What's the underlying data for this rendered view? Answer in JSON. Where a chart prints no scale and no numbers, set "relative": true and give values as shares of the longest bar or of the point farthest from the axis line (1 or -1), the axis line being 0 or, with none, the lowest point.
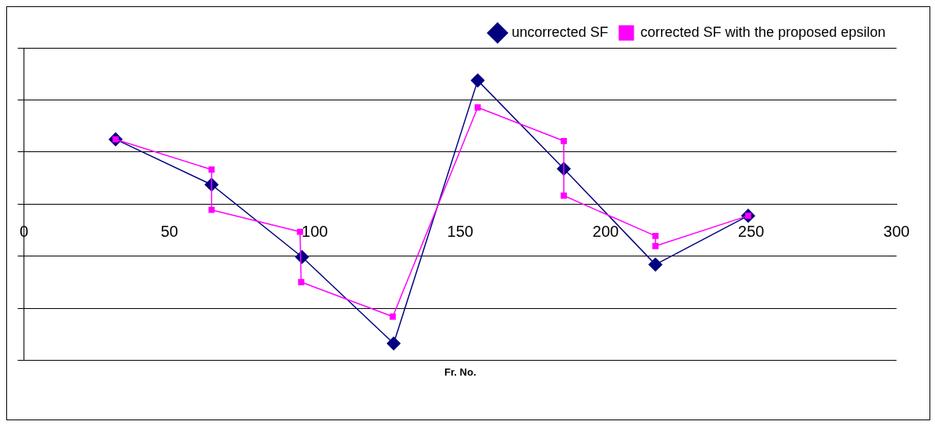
{
  "chart_data": {
    "type": "line",
    "xlabel": "Fr. No.",
    "relative": true,
    "xlim": [
      0,
      300
    ],
    "xticks": [
      0,
      50,
      100,
      150,
      200,
      250,
      300
    ],
    "grid": "y",
    "legend": "top right",
    "line_style": "solid",
    "series": [
      {
        "name": "uncorrected SF",
        "color": "#000080",
        "marker": "diamond",
        "x": [
          31.5,
          64.5,
          95.6,
          127.1,
          156,
          185.6,
          217.1,
          249
        ],
        "values": [
          0.464,
          0.139,
          -0.38,
          -1,
          0.886,
          0.253,
          -0.434,
          -0.084
        ]
      },
      {
        "name": "corrected SF with the proposed epsilon",
        "color": "#ff00ff",
        "marker": "square",
        "x": [
          31.5,
          64.5,
          64.5,
          94.9,
          95.3,
          126.8,
          156,
          185.6,
          185.6,
          217.1,
          217.1,
          249
        ],
        "values": [
          0.464,
          0.247,
          -0.042,
          -0.199,
          -0.56,
          -0.807,
          0.693,
          0.452,
          0.06,
          -0.229,
          -0.301,
          -0.084
        ]
      }
    ]
  }
}
